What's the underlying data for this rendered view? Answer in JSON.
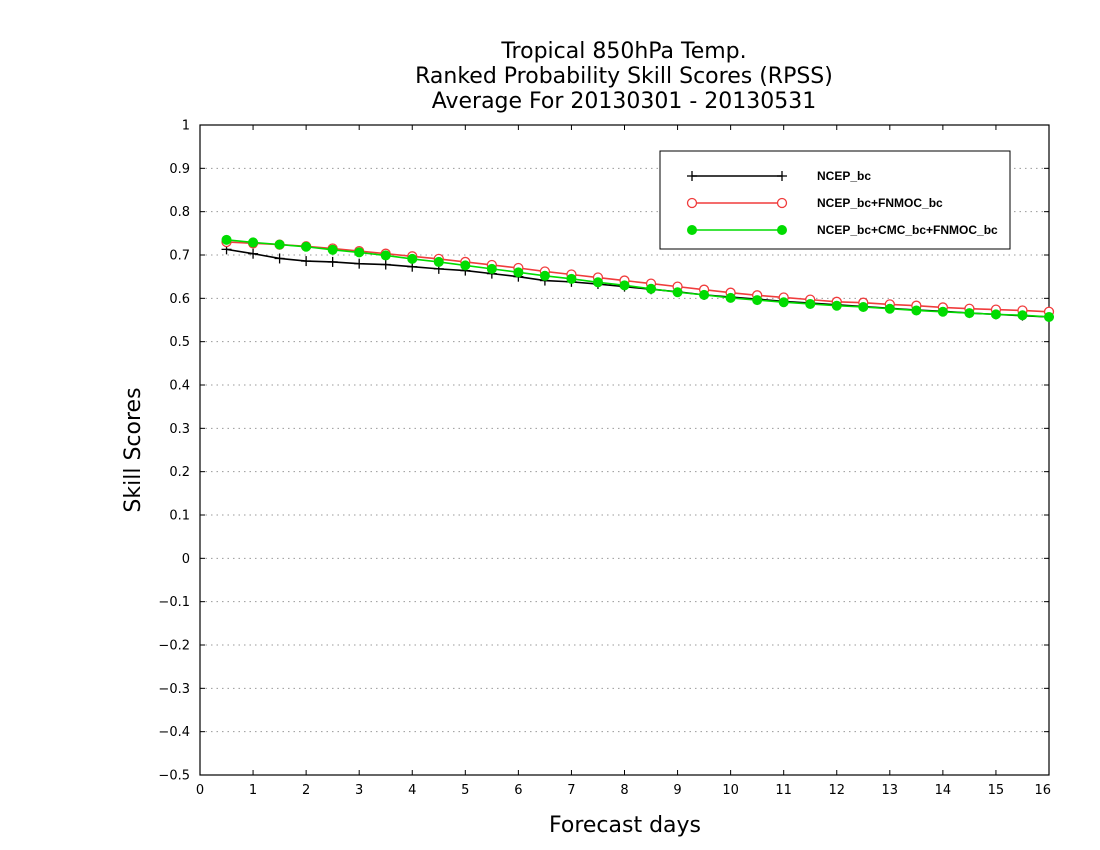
{
  "chart_data": {
    "type": "line",
    "title": [
      "Tropical 850hPa Temp.",
      "Ranked Probability Skill Scores (RPSS)",
      "Average For 20130301 - 20130531"
    ],
    "xlabel": "Forecast days",
    "ylabel": "Skill Scores",
    "xlim": [
      0,
      16
    ],
    "ylim": [
      -0.5,
      1
    ],
    "xticks": [
      "0",
      "1",
      "2",
      "3",
      "4",
      "5",
      "6",
      "7",
      "8",
      "9",
      "10",
      "11",
      "12",
      "13",
      "14",
      "15",
      "16"
    ],
    "yticks": [
      -0.5,
      -0.4,
      -0.3,
      -0.2,
      -0.1,
      0,
      0.1,
      0.2,
      0.3,
      0.4,
      0.5,
      0.6,
      0.7,
      0.8,
      0.9,
      1
    ],
    "ytick_labels": [
      "−0.5",
      "−0.4",
      "−0.3",
      "−0.2",
      "−0.1",
      "0",
      "0.1",
      "0.2",
      "0.3",
      "0.4",
      "0.5",
      "0.6",
      "0.7",
      "0.8",
      "0.9",
      "1"
    ],
    "grid": "horizontal dotted",
    "legend_position": "top-right",
    "x": [
      0.5,
      1,
      1.5,
      2,
      2.5,
      3,
      3.5,
      4,
      4.5,
      5,
      5.5,
      6,
      6.5,
      7,
      7.5,
      8,
      8.5,
      9,
      9.5,
      10,
      10.5,
      11,
      11.5,
      12,
      12.5,
      13,
      13.5,
      14,
      14.5,
      15,
      15.5,
      16
    ],
    "series": [
      {
        "name": "NCEP_bc",
        "color": "#000000",
        "marker": "plus",
        "values": [
          0.713,
          0.703,
          0.692,
          0.686,
          0.684,
          0.68,
          0.678,
          0.673,
          0.668,
          0.664,
          0.657,
          0.65,
          0.641,
          0.638,
          0.633,
          0.627,
          0.621,
          0.615,
          0.608,
          0.603,
          0.598,
          0.593,
          0.589,
          0.585,
          0.581,
          0.577,
          0.573,
          0.57,
          0.566,
          0.563,
          0.56,
          0.557
        ]
      },
      {
        "name": "NCEP_bc+FNMOC_bc",
        "color": "#f03c3c",
        "marker": "open-circle",
        "values": [
          0.73,
          0.727,
          0.724,
          0.72,
          0.715,
          0.709,
          0.703,
          0.697,
          0.691,
          0.684,
          0.677,
          0.67,
          0.662,
          0.655,
          0.648,
          0.641,
          0.634,
          0.627,
          0.62,
          0.613,
          0.607,
          0.602,
          0.597,
          0.592,
          0.59,
          0.586,
          0.583,
          0.579,
          0.576,
          0.574,
          0.572,
          0.569
        ]
      },
      {
        "name": "NCEP_bc+CMC_bc+FNMOC_bc",
        "color": "#00dc00",
        "marker": "filled-circle",
        "values": [
          0.735,
          0.729,
          0.724,
          0.719,
          0.712,
          0.706,
          0.699,
          0.691,
          0.684,
          0.676,
          0.668,
          0.66,
          0.652,
          0.645,
          0.637,
          0.63,
          0.622,
          0.614,
          0.608,
          0.601,
          0.596,
          0.591,
          0.587,
          0.583,
          0.58,
          0.576,
          0.572,
          0.569,
          0.566,
          0.563,
          0.561,
          0.557
        ]
      }
    ]
  }
}
